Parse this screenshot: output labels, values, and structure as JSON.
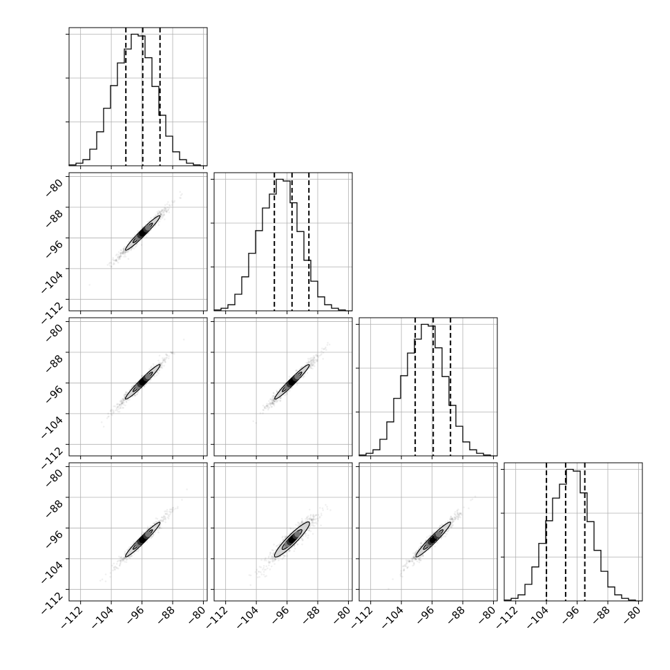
{
  "figure": {
    "type": "corner-plot",
    "n_params": 4,
    "range": [
      -115,
      -79
    ],
    "tick_values": [
      -112,
      -104,
      -96,
      -88,
      -80
    ],
    "tick_labels": [
      "−112",
      "−104",
      "−96",
      "−88",
      "−80"
    ],
    "colors": {
      "line": "#000000",
      "grid": "#b0b0b0",
      "density_light": "#d4d4d4",
      "density_dark": "#000000"
    }
  },
  "chart_data": [
    {
      "type": "histogram",
      "param": 1,
      "panel": "1,1",
      "bin_edges_range": [
        -115,
        -79
      ],
      "n_bins": 20,
      "counts": [
        1,
        3,
        7,
        19,
        39,
        66,
        92,
        118,
        134,
        151,
        149,
        124,
        91,
        58,
        34,
        16,
        7,
        3,
        1,
        0
      ],
      "quantiles": [
        -100.2,
        -95.8,
        -91.3
      ]
    },
    {
      "type": "histogram",
      "param": 2,
      "panel": "2,2",
      "bin_edges_range": [
        -115,
        -79
      ],
      "n_bins": 20,
      "counts": [
        1,
        3,
        7,
        19,
        39,
        66,
        92,
        118,
        134,
        151,
        149,
        124,
        91,
        58,
        34,
        16,
        7,
        3,
        1,
        0
      ],
      "quantiles": [
        -99.3,
        -94.7,
        -90.3
      ]
    },
    {
      "type": "histogram",
      "param": 3,
      "panel": "3,3",
      "bin_edges_range": [
        -115,
        -79
      ],
      "n_bins": 20,
      "counts": [
        1,
        3,
        7,
        19,
        39,
        66,
        92,
        118,
        134,
        151,
        149,
        124,
        91,
        58,
        34,
        16,
        7,
        3,
        1,
        0
      ],
      "quantiles": [
        -100.4,
        -95.7,
        -91.2
      ]
    },
    {
      "type": "histogram",
      "param": 4,
      "panel": "4,4",
      "bin_edges_range": [
        -115,
        -79
      ],
      "n_bins": 20,
      "counts": [
        1,
        3,
        7,
        19,
        39,
        66,
        92,
        118,
        134,
        151,
        149,
        124,
        91,
        58,
        34,
        16,
        7,
        3,
        1,
        0
      ],
      "quantiles": [
        -104.0,
        -99.0,
        -94.0
      ]
    },
    {
      "type": "scatter-density",
      "panel": "2,1",
      "x_param": 1,
      "y_param": 2,
      "center": [
        -95.8,
        -94.7
      ],
      "spread": 3.2,
      "width": 0.35,
      "angle_deg": 45
    },
    {
      "type": "scatter-density",
      "panel": "3,1",
      "x_param": 1,
      "y_param": 3,
      "center": [
        -95.8,
        -95.7
      ],
      "spread": 3.2,
      "width": 0.35,
      "angle_deg": 45
    },
    {
      "type": "scatter-density",
      "panel": "3,2",
      "x_param": 2,
      "y_param": 3,
      "center": [
        -94.7,
        -95.7
      ],
      "spread": 3.2,
      "width": 0.35,
      "angle_deg": 45
    },
    {
      "type": "scatter-density",
      "panel": "4,1",
      "x_param": 1,
      "y_param": 4,
      "center": [
        -95.8,
        -99.0
      ],
      "spread": 3.2,
      "width": 0.35,
      "angle_deg": 45
    },
    {
      "type": "scatter-density",
      "panel": "4,2",
      "x_param": 2,
      "y_param": 4,
      "center": [
        -94.7,
        -99.0
      ],
      "spread": 3.2,
      "width": 0.55,
      "angle_deg": 45
    },
    {
      "type": "scatter-density",
      "panel": "4,3",
      "x_param": 3,
      "y_param": 4,
      "center": [
        -95.7,
        -99.0
      ],
      "spread": 3.2,
      "width": 0.4,
      "angle_deg": 45
    }
  ]
}
